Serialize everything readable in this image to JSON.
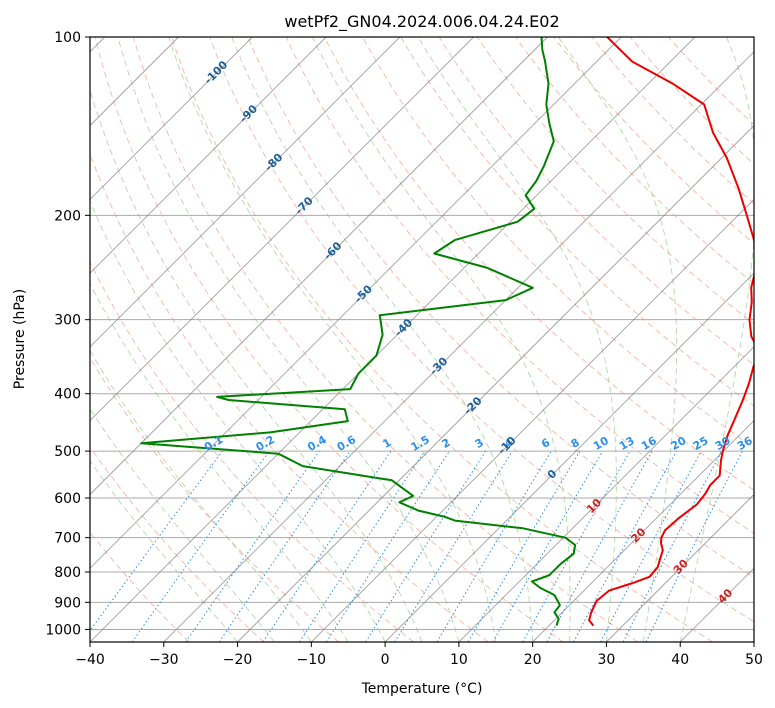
{
  "chart_data": {
    "type": "line",
    "chart_kind": "skew-t log-p diagram",
    "title": "wetPf2_GN04.2024.006.04.24.E02",
    "xlabel": "Temperature (°C)",
    "ylabel": "Pressure (hPa)",
    "xlim": [
      -40,
      50
    ],
    "ylim": [
      1050,
      100
    ],
    "y_scale": "log",
    "x_ticks": [
      -40,
      -30,
      -20,
      -10,
      0,
      10,
      20,
      30,
      40,
      50
    ],
    "x_tick_labels": [
      "−40",
      "−30",
      "−20",
      "−10",
      "0",
      "10",
      "20",
      "30",
      "40",
      "50"
    ],
    "y_ticks": [
      1000,
      900,
      800,
      700,
      600,
      500,
      400,
      300,
      200,
      100
    ],
    "y_tick_labels": [
      "1000",
      "900",
      "800",
      "700",
      "600",
      "500",
      "400",
      "300",
      "200",
      "100"
    ],
    "grid": true,
    "skew_isotherms": true,
    "isotherm_labels": [
      {
        "text": "-100",
        "value": -100,
        "p": 115
      },
      {
        "text": "-90",
        "value": -90,
        "p": 135
      },
      {
        "text": "-80",
        "value": -80,
        "p": 163
      },
      {
        "text": "-70",
        "value": -70,
        "p": 193
      },
      {
        "text": "-60",
        "value": -60,
        "p": 230
      },
      {
        "text": "-50",
        "value": -50,
        "p": 272
      },
      {
        "text": "-40",
        "value": -40,
        "p": 310
      },
      {
        "text": "-30",
        "value": -30,
        "p": 360
      },
      {
        "text": "-20",
        "value": -20,
        "p": 420
      },
      {
        "text": "-10",
        "value": -10,
        "p": 490
      },
      {
        "text": "0",
        "value": 0,
        "p": 548
      },
      {
        "text": "10",
        "value": 10,
        "p": 620
      },
      {
        "text": "20",
        "value": 20,
        "p": 695
      },
      {
        "text": "30",
        "value": 30,
        "p": 785
      },
      {
        "text": "40",
        "value": 40,
        "p": 880
      }
    ],
    "mixing_ratio_labels": [
      "0.1",
      "0.2",
      "0.4",
      "0.6",
      "1",
      "1.5",
      "2",
      "3",
      "4",
      "6",
      "8",
      "10",
      "13",
      "16",
      "20",
      "25",
      "30",
      "36"
    ],
    "mixing_ratio_label_x": [
      -23,
      -16,
      -9,
      -5,
      0.5,
      5,
      8.5,
      13,
      17,
      22,
      26,
      29.5,
      33,
      36,
      40,
      43,
      46,
      49
    ],
    "colors": {
      "temperature": "#ee0000",
      "dewpoint": "#008000",
      "isotherm": "#7f7f7f",
      "dry_adiabat": "#f4a38c",
      "moist_adiabat": "#9ccf93",
      "mixing_ratio": "#2d8fe6",
      "isotherm_label": "#1f5f99",
      "warm_label": "#cc2222"
    },
    "series": [
      {
        "name": "Temperature",
        "points": [
          [
            26.0,
            985
          ],
          [
            24.7,
            965
          ],
          [
            23.9,
            935
          ],
          [
            23.1,
            895
          ],
          [
            23.4,
            860
          ],
          [
            25.6,
            835
          ],
          [
            27.0,
            815
          ],
          [
            26.8,
            785
          ],
          [
            26.0,
            760
          ],
          [
            25.2,
            735
          ],
          [
            24.0,
            715
          ],
          [
            23.3,
            700
          ],
          [
            22.8,
            680
          ],
          [
            23.0,
            650
          ],
          [
            23.6,
            615
          ],
          [
            23.3,
            590
          ],
          [
            22.8,
            570
          ],
          [
            22.8,
            550
          ],
          [
            21.0,
            520
          ],
          [
            19.9,
            500
          ],
          [
            18.4,
            470
          ],
          [
            17.1,
            440
          ],
          [
            15.7,
            410
          ],
          [
            14.3,
            385
          ],
          [
            12.6,
            360
          ],
          [
            11.4,
            340
          ],
          [
            8.2,
            320
          ],
          [
            5.7,
            300
          ],
          [
            3.6,
            280
          ],
          [
            1.6,
            265
          ],
          [
            -1.0,
            240
          ],
          [
            -4.5,
            220
          ],
          [
            -8.8,
            200
          ],
          [
            -13.6,
            180
          ],
          [
            -19.3,
            160
          ],
          [
            -24.6,
            145
          ],
          [
            -29.6,
            130
          ],
          [
            -36.6,
            120
          ],
          [
            -45.2,
            110
          ],
          [
            -51.9,
            100
          ]
        ]
      },
      {
        "name": "Dewpoint",
        "points": [
          [
            21.0,
            985
          ],
          [
            20.4,
            960
          ],
          [
            18.9,
            935
          ],
          [
            18.7,
            910
          ],
          [
            16.6,
            875
          ],
          [
            13.6,
            850
          ],
          [
            11.7,
            830
          ],
          [
            13.2,
            810
          ],
          [
            13.2,
            790
          ],
          [
            13.2,
            775
          ],
          [
            13.6,
            745
          ],
          [
            12.6,
            720
          ],
          [
            10.3,
            700
          ],
          [
            3.3,
            675
          ],
          [
            -7.0,
            655
          ],
          [
            -9.0,
            645
          ],
          [
            -13.3,
            630
          ],
          [
            -17.0,
            610
          ],
          [
            -16.0,
            595
          ],
          [
            -21.0,
            560
          ],
          [
            -35.0,
            530
          ],
          [
            -40.0,
            505
          ],
          [
            -60.0,
            485
          ],
          [
            -44.0,
            465
          ],
          [
            -35.0,
            445
          ],
          [
            -37.0,
            425
          ],
          [
            -54.0,
            410
          ],
          [
            -56.0,
            405
          ],
          [
            -39.0,
            393
          ],
          [
            -40.0,
            370
          ],
          [
            -40.0,
            345
          ],
          [
            -42.0,
            318
          ],
          [
            -45.0,
            295
          ],
          [
            -30.0,
            278
          ],
          [
            -28.0,
            265
          ],
          [
            -37.0,
            245
          ],
          [
            -46.0,
            232
          ],
          [
            -45.0,
            220
          ],
          [
            -39.0,
            205
          ],
          [
            -38.5,
            195
          ],
          [
            -41.5,
            185
          ],
          [
            -42.0,
            175
          ],
          [
            -43.0,
            165
          ],
          [
            -45.0,
            150
          ],
          [
            -48.0,
            140
          ],
          [
            -51.0,
            130
          ],
          [
            -53.5,
            120
          ],
          [
            -57.0,
            110
          ],
          [
            -59.0,
            105
          ],
          [
            -60.8,
            100
          ]
        ]
      }
    ]
  }
}
